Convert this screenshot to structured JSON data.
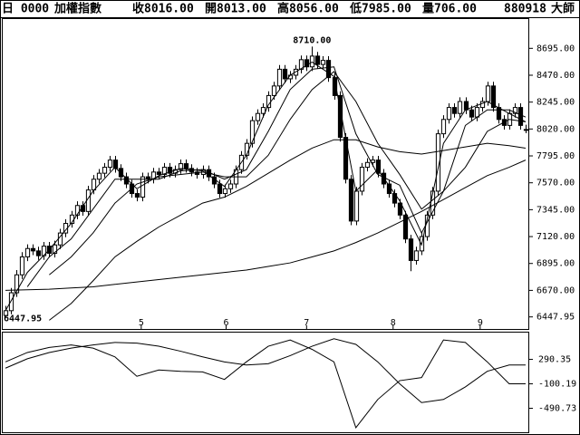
{
  "header": {
    "code": "日 0000",
    "name": "加權指數",
    "close": "收8016.00",
    "open": "開8013.00",
    "high": "高8056.00",
    "low": "低7985.00",
    "volume": "量706.00",
    "date": "880918",
    "label": "大師"
  },
  "chart_data": [
    {
      "type": "candlestick",
      "color": "#000000",
      "xlim": [
        -0.5,
        95.5
      ],
      "ylim": [
        6347,
        8940
      ],
      "xticks": [
        {
          "value": 24.8,
          "label": "5"
        },
        {
          "value": 40.3,
          "label": "6"
        },
        {
          "value": 55,
          "label": "7"
        },
        {
          "value": 70.8,
          "label": "8"
        },
        {
          "value": 86.7,
          "label": "9"
        }
      ],
      "yticks": [
        {
          "value": 8695,
          "label": "8695.00"
        },
        {
          "value": 8470,
          "label": "8470.00"
        },
        {
          "value": 8245,
          "label": "8245.00"
        },
        {
          "value": 8020,
          "label": "8020.00"
        },
        {
          "value": 7795,
          "label": "7795.00"
        },
        {
          "value": 7570,
          "label": "7570.00"
        },
        {
          "value": 7345,
          "label": "7345.00"
        },
        {
          "value": 7120,
          "label": "7120.00"
        },
        {
          "value": 6895,
          "label": "6895.00"
        },
        {
          "value": 6670,
          "label": "6670.00"
        },
        6447.95
      ],
      "annotations": [
        {
          "x": 56,
          "value": 8710,
          "label": "8710.00"
        },
        {
          "x": 0,
          "value": 6447.95,
          "label": "6447.95"
        }
      ],
      "candles": [
        [
          6460,
          6540,
          6447.95,
          6500
        ],
        [
          6500,
          6690,
          6470,
          6650
        ],
        [
          6650,
          6840,
          6615,
          6800
        ],
        [
          6800,
          6990,
          6765,
          6950
        ],
        [
          6950,
          7055,
          6915,
          7020
        ],
        [
          7020,
          7055,
          6965,
          7000
        ],
        [
          7000,
          7035,
          6925,
          6960
        ],
        [
          6960,
          7075,
          6925,
          7040
        ],
        [
          7040,
          7075,
          6945,
          6980
        ],
        [
          6980,
          7085,
          6945,
          7050
        ],
        [
          7050,
          7185,
          7015,
          7150
        ],
        [
          7150,
          7265,
          7115,
          7230
        ],
        [
          7230,
          7335,
          7195,
          7300
        ],
        [
          7300,
          7415,
          7265,
          7380
        ],
        [
          7380,
          7415,
          7295,
          7330
        ],
        [
          7330,
          7545,
          7295,
          7510
        ],
        [
          7510,
          7635,
          7475,
          7600
        ],
        [
          7600,
          7685,
          7565,
          7650
        ],
        [
          7650,
          7735,
          7615,
          7700
        ],
        [
          7700,
          7795,
          7665,
          7760
        ],
        [
          7760,
          7795,
          7655,
          7690
        ],
        [
          7690,
          7725,
          7585,
          7620
        ],
        [
          7620,
          7655,
          7525,
          7560
        ],
        [
          7560,
          7595,
          7445,
          7480
        ],
        [
          7480,
          7515,
          7415,
          7450
        ],
        [
          7450,
          7655,
          7415,
          7620
        ],
        [
          7620,
          7655,
          7565,
          7600
        ],
        [
          7600,
          7695,
          7565,
          7660
        ],
        [
          7660,
          7695,
          7605,
          7640
        ],
        [
          7640,
          7735,
          7605,
          7700
        ],
        [
          7700,
          7735,
          7615,
          7650
        ],
        [
          7650,
          7715,
          7615,
          7680
        ],
        [
          7680,
          7765,
          7645,
          7730
        ],
        [
          7730,
          7765,
          7655,
          7690
        ],
        [
          7690,
          7725,
          7625,
          7660
        ],
        [
          7660,
          7695,
          7605,
          7640
        ],
        [
          7640,
          7715,
          7605,
          7680
        ],
        [
          7680,
          7715,
          7585,
          7620
        ],
        [
          7620,
          7655,
          7525,
          7560
        ],
        [
          7560,
          7595,
          7445,
          7480
        ],
        [
          7480,
          7555,
          7445,
          7520
        ],
        [
          7520,
          7595,
          7485,
          7560
        ],
        [
          7560,
          7715,
          7525,
          7680
        ],
        [
          7680,
          7835,
          7645,
          7800
        ],
        [
          7800,
          7935,
          7765,
          7900
        ],
        [
          7900,
          8125,
          7865,
          8090
        ],
        [
          8090,
          8185,
          8055,
          8150
        ],
        [
          8150,
          8235,
          8115,
          8200
        ],
        [
          8200,
          8335,
          8165,
          8300
        ],
        [
          8300,
          8415,
          8265,
          8380
        ],
        [
          8380,
          8555,
          8345,
          8520
        ],
        [
          8520,
          8555,
          8405,
          8440
        ],
        [
          8440,
          8505,
          8405,
          8470
        ],
        [
          8470,
          8555,
          8435,
          8520
        ],
        [
          8520,
          8635,
          8485,
          8600
        ],
        [
          8600,
          8635,
          8505,
          8540
        ],
        [
          8540,
          8710,
          8505,
          8630
        ],
        [
          8630,
          8665,
          8525,
          8560
        ],
        [
          8560,
          8629,
          8525,
          8594
        ],
        [
          8594,
          8629,
          8415,
          8450
        ],
        [
          8450,
          8485,
          8265,
          8300
        ],
        [
          8300,
          8335,
          7915,
          7950
        ],
        [
          7950,
          7985,
          7565,
          7600
        ],
        [
          7600,
          7635,
          7215,
          7250
        ],
        [
          7250,
          7535,
          7215,
          7500
        ],
        [
          7500,
          7735,
          7465,
          7700
        ],
        [
          7700,
          7775,
          7665,
          7740
        ],
        [
          7740,
          7795,
          7705,
          7760
        ],
        [
          7760,
          7795,
          7615,
          7650
        ],
        [
          7650,
          7685,
          7525,
          7560
        ],
        [
          7560,
          7595,
          7445,
          7480
        ],
        [
          7480,
          7515,
          7365,
          7400
        ],
        [
          7400,
          7435,
          7265,
          7300
        ],
        [
          7300,
          7335,
          7065,
          7100
        ],
        [
          7100,
          7135,
          6830,
          6920
        ],
        [
          6920,
          7035,
          6885,
          7000
        ],
        [
          7000,
          7155,
          6965,
          7120
        ],
        [
          7120,
          7335,
          7085,
          7300
        ],
        [
          7300,
          7535,
          7265,
          7500
        ],
        [
          7500,
          8015,
          7465,
          7980
        ],
        [
          7980,
          8135,
          7945,
          8100
        ],
        [
          8100,
          8235,
          8065,
          8200
        ],
        [
          8200,
          8235,
          8115,
          8150
        ],
        [
          8150,
          8285,
          8115,
          8250
        ],
        [
          8250,
          8285,
          8145,
          8180
        ],
        [
          8180,
          8215,
          8085,
          8120
        ],
        [
          8120,
          8235,
          8085,
          8200
        ],
        [
          8200,
          8285,
          8165,
          8250
        ],
        [
          8250,
          8415,
          8215,
          8380
        ],
        [
          8380,
          8415,
          8165,
          8200
        ],
        [
          8200,
          8235,
          8065,
          8100
        ],
        [
          8100,
          8135,
          8015,
          8050
        ],
        [
          8050,
          8185,
          8015,
          8150
        ],
        [
          8150,
          8235,
          8115,
          8200
        ],
        [
          8200,
          8235,
          8015,
          8050
        ],
        [
          8013,
          8056,
          7985,
          8016
        ]
      ],
      "line_x": [
        0,
        4,
        8,
        12,
        16,
        20,
        24,
        28,
        32,
        36,
        40,
        44,
        48,
        52,
        56,
        60,
        64,
        68,
        72,
        76,
        80,
        84,
        88,
        92,
        95
      ],
      "lines": [
        {
          "color": "#000000",
          "values": [
            6500,
            6820,
            7010,
            7230,
            7500,
            7700,
            7520,
            7630,
            7690,
            7670,
            7540,
            7800,
            8220,
            8470,
            8580,
            8460,
            7500,
            7680,
            7420,
            7050,
            7900,
            8180,
            8250,
            8150,
            8080
          ]
        },
        {
          "color": "#000000",
          "values": [
            null,
            6700,
            6950,
            7100,
            7350,
            7600,
            7600,
            7600,
            7670,
            7680,
            7600,
            7680,
            8000,
            8350,
            8520,
            8540,
            7980,
            7640,
            7550,
            7150,
            7500,
            8050,
            8180,
            8180,
            8120
          ]
        },
        {
          "color": "#000000",
          "values": [
            null,
            null,
            6800,
            6950,
            7150,
            7400,
            7560,
            7620,
            7640,
            7660,
            7620,
            7620,
            7800,
            8100,
            8350,
            8500,
            8250,
            7900,
            7640,
            7350,
            7500,
            7700,
            8000,
            8100,
            8080
          ]
        },
        {
          "color": "#000000",
          "values": [
            null,
            null,
            6420,
            6560,
            6750,
            6950,
            7080,
            7200,
            7300,
            7400,
            7450,
            7540,
            7650,
            7760,
            7860,
            7930,
            7930,
            7870,
            7830,
            7810,
            7840,
            7870,
            7900,
            7880,
            7860
          ]
        },
        {
          "color": "#000000",
          "values": [
            6670,
            6675,
            6680,
            6690,
            6700,
            6720,
            6740,
            6760,
            6780,
            6800,
            6820,
            6840,
            6870,
            6900,
            6950,
            7000,
            7070,
            7150,
            7240,
            7330,
            7430,
            7530,
            7630,
            7700,
            7760
          ]
        }
      ]
    },
    {
      "type": "line",
      "xlim": [
        -0.5,
        95.5
      ],
      "ylim": [
        -873.9,
        717.7
      ],
      "yticks": [
        290.35,
        -100.19,
        -490.73
      ],
      "x": [
        0,
        4,
        8,
        12,
        16,
        20,
        24,
        28,
        32,
        36,
        40,
        44,
        48,
        52,
        56,
        60,
        64,
        68,
        72,
        76,
        80,
        84,
        88,
        92,
        95
      ],
      "series": [
        {
          "color": "#000000",
          "values": [
            250,
            400,
            480,
            520,
            470,
            330,
            20,
            120,
            100,
            90,
            -30,
            250,
            500,
            600,
            450,
            250,
            -800,
            -350,
            -50,
            0,
            600,
            560,
            250,
            -100,
            -100
          ]
        },
        {
          "color": "#000000",
          "values": [
            150,
            300,
            400,
            470,
            520,
            560,
            550,
            500,
            420,
            330,
            250,
            200,
            220,
            350,
            500,
            620,
            530,
            250,
            -100,
            -400,
            -350,
            -150,
            100,
            200,
            200
          ]
        }
      ]
    }
  ]
}
